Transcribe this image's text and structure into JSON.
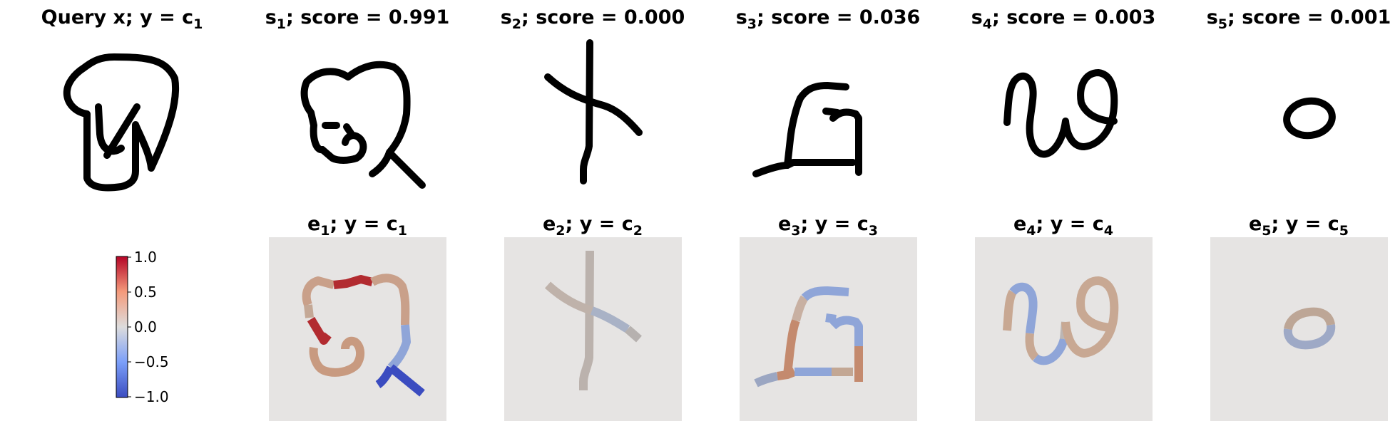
{
  "query": {
    "title_main": "Query x; y = c",
    "title_sub": "1"
  },
  "supports": [
    {
      "s_main": "s",
      "s_sub": "1",
      "score_text": "; score = 0.991",
      "score": 0.991,
      "expl_main": "e",
      "expl_sub": "1",
      "class_text": "; y = c",
      "class_sub": "1"
    },
    {
      "s_main": "s",
      "s_sub": "2",
      "score_text": "; score = 0.000",
      "score": 0.0,
      "expl_main": "e",
      "expl_sub": "2",
      "class_text": "; y = c",
      "class_sub": "2"
    },
    {
      "s_main": "s",
      "s_sub": "3",
      "score_text": "; score = 0.036",
      "score": 0.036,
      "expl_main": "e",
      "expl_sub": "3",
      "class_text": "; y = c",
      "class_sub": "3"
    },
    {
      "s_main": "s",
      "s_sub": "4",
      "score_text": "; score = 0.003",
      "score": 0.003,
      "expl_main": "e",
      "expl_sub": "4",
      "class_text": "; y = c",
      "class_sub": "4"
    },
    {
      "s_main": "s",
      "s_sub": "5",
      "score_text": "; score = 0.001",
      "score": 0.001,
      "expl_main": "e",
      "expl_sub": "5",
      "class_text": "; y = c",
      "class_sub": "5"
    }
  ],
  "colorbar": {
    "ticks": [
      "1.0",
      "0.5",
      "0.0",
      "−0.5",
      "−1.0"
    ],
    "min": -1.0,
    "max": 1.0,
    "colors": {
      "top": "#b40426",
      "upper": "#f49a7b",
      "mid": "#dddcdc",
      "lower": "#7b9ff9",
      "bottom": "#3b4cc0"
    }
  },
  "colors": {
    "panel_bg": "#e6e4e3",
    "strong_red": "#b22b30",
    "light_red": "#c9927c",
    "tan": "#c8a893",
    "neutral": "#bcb6b4",
    "light_blue": "#8fa5d8",
    "strong_blue": "#3b4cc0"
  }
}
